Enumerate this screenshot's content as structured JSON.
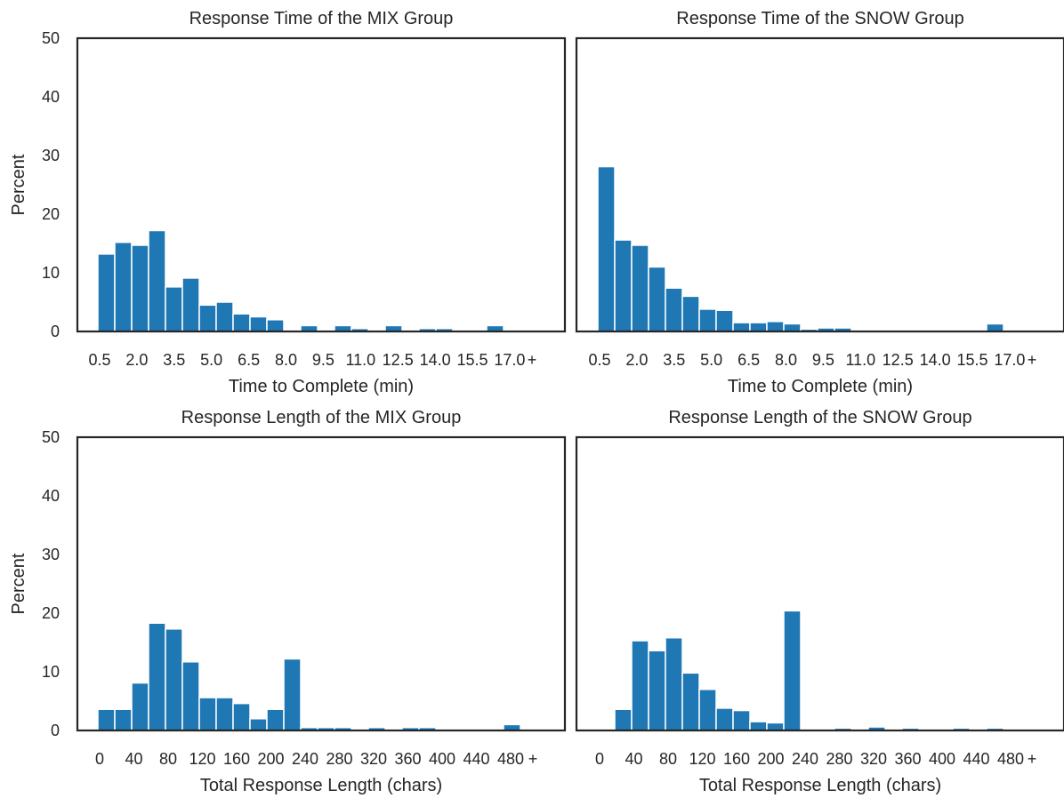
{
  "chart_data": [
    {
      "type": "bar",
      "title": "Response Time of the MIX Group",
      "xlabel": "Time to Complete (min)",
      "ylabel": "Percent",
      "ylim": [
        0,
        50
      ],
      "y_ticks": [
        "0",
        "10",
        "20",
        "30",
        "40",
        "50"
      ],
      "x_tick_labels": [
        "0.5",
        "2.0",
        "3.5",
        "5.0",
        "6.5",
        "8.0",
        "9.5",
        "11.0",
        "12.5",
        "14.0",
        "15.5",
        "17.0",
        "+"
      ],
      "bin_start": 0.5,
      "bin_width": 0.75,
      "values": [
        13.2,
        15.2,
        14.7,
        17.2,
        7.6,
        9.1,
        4.5,
        5.0,
        3.0,
        2.5,
        2.0,
        0,
        1.0,
        0,
        1.0,
        0.5,
        0,
        1.0,
        0,
        0.5,
        0.5,
        0,
        0,
        1.0
      ],
      "color": "#1f77b4",
      "grid": false
    },
    {
      "type": "bar",
      "title": "Response Time of the SNOW Group",
      "xlabel": "Time to Complete (min)",
      "ylabel": "",
      "ylim": [
        0,
        50
      ],
      "y_ticks": [],
      "x_tick_labels": [
        "0.5",
        "2.0",
        "3.5",
        "5.0",
        "6.5",
        "8.0",
        "9.5",
        "11.0",
        "12.5",
        "14.0",
        "15.5",
        "17.0",
        "+"
      ],
      "bin_start": 0.5,
      "bin_width": 0.75,
      "values": [
        28.1,
        15.6,
        14.7,
        11.0,
        7.4,
        6.0,
        3.8,
        3.6,
        1.5,
        1.5,
        1.7,
        1.3,
        0.4,
        0.6,
        0.6,
        0,
        0,
        0,
        0,
        0,
        0,
        0,
        0,
        1.3
      ],
      "color": "#1f77b4",
      "grid": false
    },
    {
      "type": "bar",
      "title": "Response Length of the MIX Group",
      "xlabel": "Total Response Length (chars)",
      "ylabel": "Percent",
      "ylim": [
        0,
        50
      ],
      "y_ticks": [
        "0",
        "10",
        "20",
        "30",
        "40",
        "50"
      ],
      "x_tick_labels": [
        "0",
        "40",
        "80",
        "120",
        "160",
        "200",
        "240",
        "280",
        "320",
        "360",
        "400",
        "440",
        "480",
        "+"
      ],
      "bin_start": 0,
      "bin_width": 20,
      "values": [
        3.6,
        3.6,
        8.1,
        18.3,
        17.3,
        11.7,
        5.6,
        5.6,
        4.6,
        2.0,
        3.6,
        12.2,
        0.5,
        0.5,
        0.5,
        0,
        0.5,
        0,
        0.5,
        0.5,
        0,
        0,
        0,
        0,
        1.0
      ],
      "color": "#1f77b4",
      "grid": false
    },
    {
      "type": "bar",
      "title": "Response Length of the SNOW Group",
      "xlabel": "Total Response Length (chars)",
      "ylabel": "",
      "ylim": [
        0,
        50
      ],
      "y_ticks": [],
      "x_tick_labels": [
        "0",
        "40",
        "80",
        "120",
        "160",
        "200",
        "240",
        "280",
        "320",
        "360",
        "400",
        "440",
        "480",
        "+"
      ],
      "bin_start": 0,
      "bin_width": 20,
      "values": [
        0,
        3.6,
        15.3,
        13.6,
        15.8,
        9.8,
        7.0,
        3.8,
        3.4,
        1.5,
        1.3,
        20.4,
        0,
        0,
        0.4,
        0,
        0.6,
        0,
        0.4,
        0,
        0,
        0.4,
        0,
        0.4
      ],
      "color": "#1f77b4",
      "grid": false
    }
  ]
}
